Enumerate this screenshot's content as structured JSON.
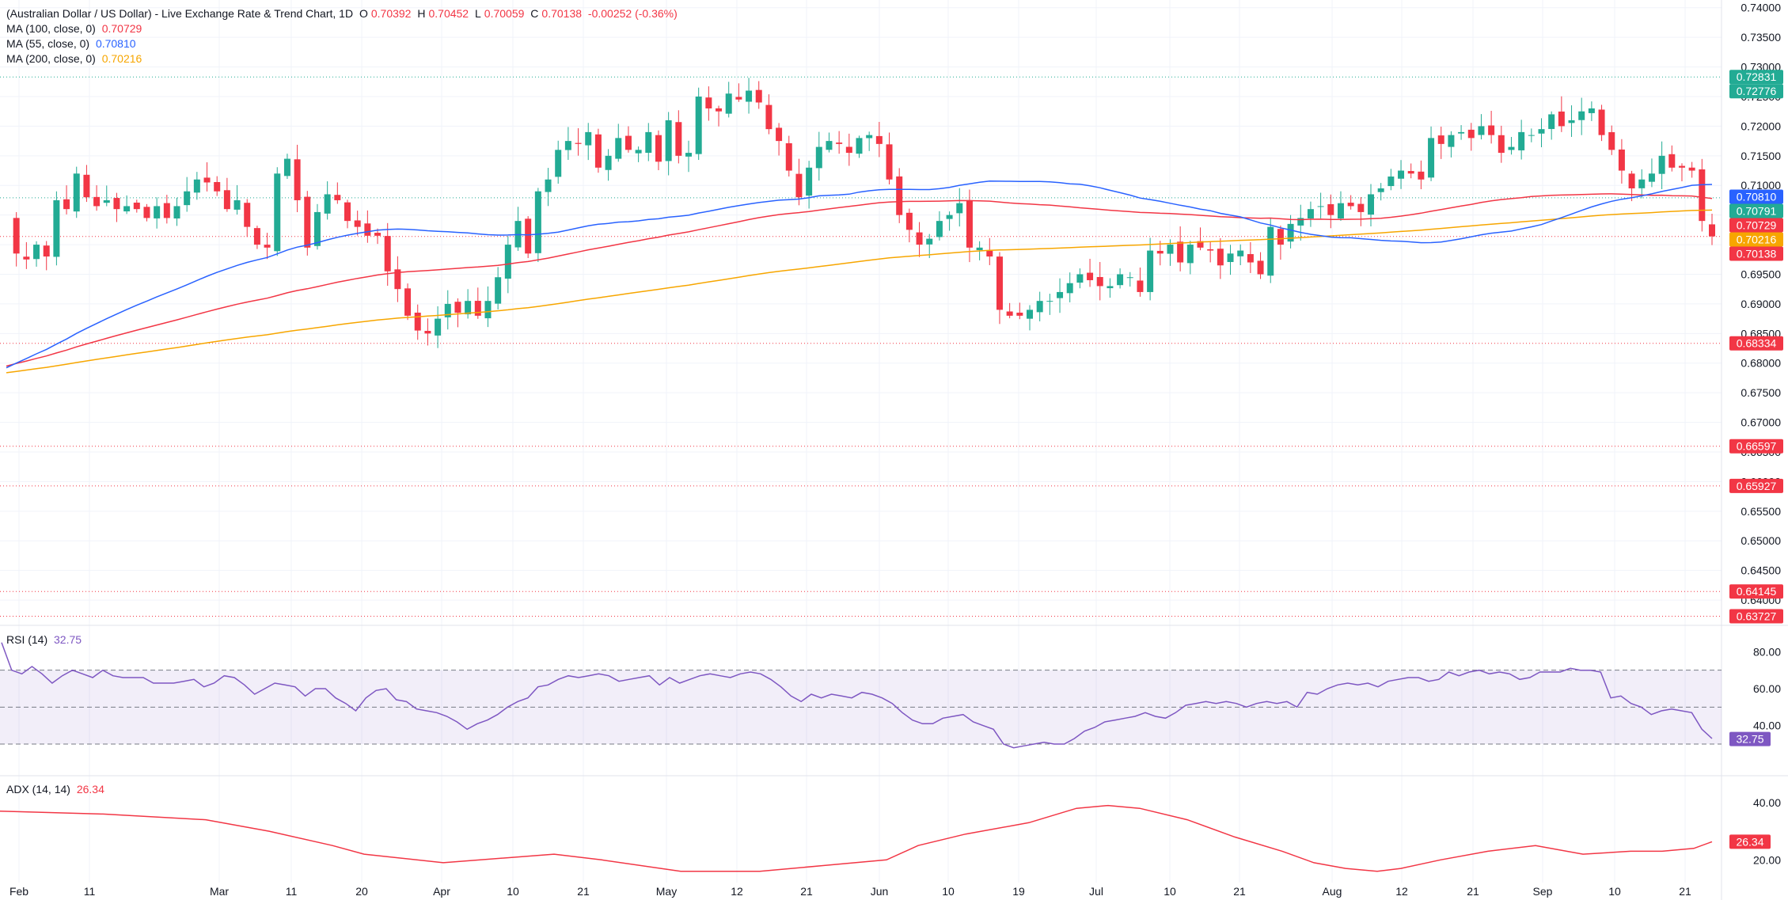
{
  "header": {
    "symbol": "(Australian Dollar / US Dollar) - Live Exchange Rate & Trend Chart, 1D",
    "ohlc": [
      {
        "k": "O",
        "v": "0.70392"
      },
      {
        "k": "H",
        "v": "0.70452"
      },
      {
        "k": "L",
        "v": "0.70059"
      },
      {
        "k": "C",
        "v": "0.70138"
      }
    ],
    "change": "-0.00252 (-0.36%)"
  },
  "indicators": [
    {
      "label": "MA (100, close, 0)",
      "value": "0.70729",
      "color": "#f23645"
    },
    {
      "label": "MA (55, close, 0)",
      "value": "0.70810",
      "color": "#2962ff"
    },
    {
      "label": "MA (200, close, 0)",
      "value": "0.70216",
      "color": "#f7a600"
    }
  ],
  "colors": {
    "up": "#22ab94",
    "down": "#f23645",
    "grid": "#f0f3fa",
    "rsi": "#7e57c2",
    "adx": "#f23645"
  },
  "chart_data": [
    {
      "type": "candlestick",
      "title": "(Australian Dollar / US Dollar) - Live Exchange Rate & Trend Chart, 1D",
      "ylim": [
        0.636,
        0.7405
      ],
      "y_ticks": [
        "0.74000",
        "0.73500",
        "0.73000",
        "0.72500",
        "0.72000",
        "0.71500",
        "0.71000",
        "0.70500",
        "0.70000",
        "0.69500",
        "0.69000",
        "0.68500",
        "0.68000",
        "0.67500",
        "0.67000",
        "0.66500",
        "0.66000",
        "0.65500",
        "0.65000",
        "0.64500",
        "0.64000"
      ],
      "x_ticks": [
        "Feb",
        "11",
        "Mar",
        "11",
        "20",
        "Apr",
        "10",
        "21",
        "May",
        "12",
        "21",
        "Jun",
        "10",
        "19",
        "Jul",
        "10",
        "21",
        "Aug",
        "12",
        "21",
        "Sep",
        "10",
        "21"
      ],
      "closes": [
        0.704,
        0.6985,
        0.6975,
        0.7,
        0.698,
        0.7075,
        0.706,
        0.712,
        0.708,
        0.7065,
        0.7075,
        0.706,
        0.7065,
        0.706,
        0.7045,
        0.7065,
        0.7045,
        0.7065,
        0.709,
        0.711,
        0.7105,
        0.709,
        0.706,
        0.7075,
        0.703,
        0.7,
        0.6995,
        0.712,
        0.7145,
        0.7075,
        0.6995,
        0.7055,
        0.7085,
        0.7075,
        0.704,
        0.703,
        0.7015,
        0.7015,
        0.6955,
        0.6925,
        0.688,
        0.6855,
        0.685,
        0.6875,
        0.69,
        0.6885,
        0.6905,
        0.688,
        0.6905,
        0.6945,
        0.7,
        0.704,
        0.6985,
        0.709,
        0.711,
        0.716,
        0.7175,
        0.717,
        0.719,
        0.713,
        0.715,
        0.718,
        0.716,
        0.716,
        0.719,
        0.714,
        0.721,
        0.715,
        0.7155,
        0.725,
        0.723,
        0.7225,
        0.7255,
        0.7245,
        0.726,
        0.724,
        0.7195,
        0.7175,
        0.7125,
        0.708,
        0.713,
        0.7165,
        0.7175,
        0.717,
        0.7155,
        0.718,
        0.7185,
        0.717,
        0.711,
        0.705,
        0.7025,
        0.7,
        0.701,
        0.704,
        0.705,
        0.707,
        0.6995,
        0.6995,
        0.698,
        0.689,
        0.688,
        0.688,
        0.689,
        0.6905,
        0.6905,
        0.692,
        0.6935,
        0.695,
        0.694,
        0.693,
        0.693,
        0.695,
        0.6945,
        0.692,
        0.699,
        0.6985,
        0.7,
        0.697,
        0.7,
        0.6995,
        0.699,
        0.6965,
        0.6985,
        0.699,
        0.697,
        0.695,
        0.703,
        0.7,
        0.7035,
        0.7045,
        0.706,
        0.7065,
        0.705,
        0.707,
        0.7065,
        0.7055,
        0.7085,
        0.7095,
        0.7115,
        0.7125,
        0.712,
        0.711,
        0.718,
        0.717,
        0.7185,
        0.719,
        0.718,
        0.72,
        0.7185,
        0.7155,
        0.7165,
        0.719,
        0.7185,
        0.7195,
        0.722,
        0.72,
        0.721,
        0.7225,
        0.723,
        0.7185,
        0.716,
        0.7125,
        0.7095,
        0.711,
        0.712,
        0.715,
        0.713,
        0.713,
        0.7125,
        0.704,
        0.7014
      ]
    },
    {
      "type": "line",
      "title": "RSI (14)",
      "value": "32.75",
      "ylim": [
        15,
        90
      ],
      "y_ticks": [
        "80.00",
        "60.00",
        "40.00"
      ],
      "bands": [
        70,
        50,
        30
      ],
      "values": [
        85,
        70,
        68,
        72,
        68,
        63,
        67,
        70,
        68,
        66,
        70,
        67,
        66,
        66,
        66,
        63,
        63,
        63,
        64,
        65,
        61,
        63,
        67,
        66,
        62,
        57,
        60,
        63,
        62,
        61,
        56,
        60,
        60,
        55,
        52,
        48,
        55,
        59,
        60,
        54,
        53,
        49,
        48,
        47,
        45,
        42,
        38,
        41,
        43,
        46,
        50,
        53,
        55,
        61,
        62,
        65,
        67,
        66,
        67,
        68,
        67,
        64,
        65,
        66,
        67,
        62,
        66,
        63,
        65,
        67,
        68,
        67,
        66,
        68,
        69,
        68,
        65,
        61,
        56,
        53,
        57,
        55,
        57,
        56,
        55,
        58,
        57,
        55,
        52,
        47,
        43,
        41,
        41,
        44,
        45,
        46,
        42,
        40,
        38,
        30,
        28,
        29,
        30,
        31,
        30,
        30,
        33,
        37,
        39,
        42,
        43,
        44,
        45,
        47,
        45,
        44,
        47,
        51,
        52,
        53,
        52,
        53,
        52,
        50,
        52,
        53,
        52,
        53,
        50,
        58,
        57,
        60,
        62,
        63,
        62,
        63,
        61,
        64,
        65,
        66,
        66,
        64,
        65,
        69,
        67,
        69,
        70,
        68,
        69,
        68,
        65,
        66,
        69,
        69,
        69,
        71,
        70,
        70,
        69,
        55,
        56,
        52,
        50,
        46,
        48,
        49,
        48,
        47,
        38,
        33
      ]
    },
    {
      "type": "line",
      "title": "ADX (14, 14)",
      "value": "26.34",
      "ylim": [
        14,
        48
      ],
      "y_ticks": [
        "40.00",
        "20.00"
      ]
    }
  ],
  "price_labels": [
    {
      "text": "0.72831",
      "color": "#22ab94",
      "line": true
    },
    {
      "text": "0.72776",
      "color": "#22ab94",
      "line": false
    },
    {
      "text": "0.70810",
      "color": "#2962ff",
      "line": false
    },
    {
      "text": "0.70791",
      "color": "#22ab94",
      "line": true
    },
    {
      "text": "0.70729",
      "color": "#f23645",
      "line": false
    },
    {
      "text": "0.70216",
      "color": "#f7a600",
      "line": false
    },
    {
      "text": "0.70138",
      "color": "#f23645",
      "line": true
    },
    {
      "text": "0.68334",
      "color": "#f23645",
      "line": true
    },
    {
      "text": "0.66597",
      "color": "#f23645",
      "line": true
    },
    {
      "text": "0.65927",
      "color": "#f23645",
      "line": true
    },
    {
      "text": "0.64145",
      "color": "#f23645",
      "line": true
    },
    {
      "text": "0.63727",
      "color": "#f23645",
      "line": true
    }
  ]
}
